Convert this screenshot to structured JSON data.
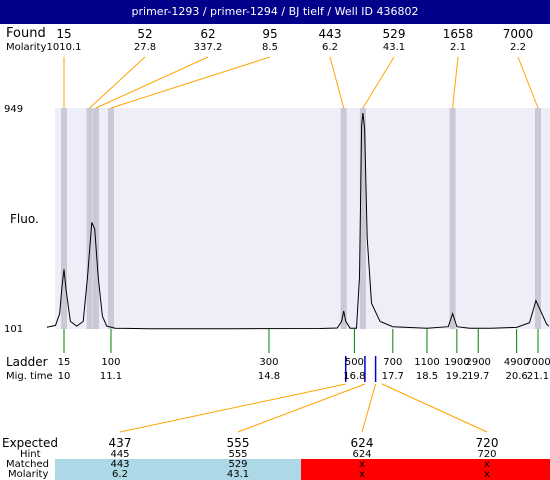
{
  "title": "primer-1293 / primer-1294 / BJ tielf / Well ID 436802",
  "labels": {
    "found": "Found",
    "molarity": "Molarity",
    "fluo": "Fluo.",
    "ladder": "Ladder",
    "mig_time": "Mig. time",
    "expected": "Expected",
    "hint": "Hint",
    "matched": "Matched",
    "molarity_bottom": "Molarity"
  },
  "colors": {
    "title_bg": "#00008b",
    "plot_bg": "#eeeef8",
    "peak_band": "#c9c9d8",
    "connector": "#ffa500",
    "ladder_tick": "#008000",
    "marker_tick": "#0000cd",
    "matched": "#add8e6",
    "unmatched": "#ff0000"
  },
  "chart_data": {
    "type": "line",
    "ylabel": "Fluo.",
    "ylim": [
      101,
      949
    ],
    "y_ticks": [
      "949",
      "101"
    ],
    "found_peaks": [
      {
        "size": "15",
        "molarity": "1010.1",
        "time": 10.0
      },
      {
        "size": "52",
        "molarity": "27.8",
        "time": 10.6
      },
      {
        "size": "62",
        "molarity": "337.2",
        "time": 10.75
      },
      {
        "size": "95",
        "molarity": "8.5",
        "time": 11.1
      },
      {
        "size": "443",
        "molarity": "6.2",
        "time": 16.55
      },
      {
        "size": "529",
        "molarity": "43.1",
        "time": 17.0
      },
      {
        "size": "1658",
        "molarity": "2.1",
        "time": 19.1
      },
      {
        "size": "7000",
        "molarity": "2.2",
        "time": 21.1
      }
    ],
    "ladder": [
      {
        "size": "15",
        "time": "10",
        "t": 10.0
      },
      {
        "size": "100",
        "time": "11.1",
        "t": 11.1
      },
      {
        "size": "300",
        "time": "14.8",
        "t": 14.8
      },
      {
        "size": "500",
        "time": "16.8",
        "t": 16.8
      },
      {
        "size": "700",
        "time": "17.7",
        "t": 17.7
      },
      {
        "size": "1100",
        "time": "18.5",
        "t": 18.5
      },
      {
        "size": "1900",
        "time": "19.2",
        "t": 19.2
      },
      {
        "size": "2900",
        "time": "19.7",
        "t": 19.7
      },
      {
        "size": "4900",
        "time": "20.6",
        "t": 20.6
      },
      {
        "size": "7000",
        "time": "21.1",
        "t": 21.1
      }
    ],
    "marker_times": [
      16.55,
      17.0,
      17.25
    ],
    "trace": [
      [
        9.6,
        108
      ],
      [
        9.8,
        115
      ],
      [
        9.9,
        160
      ],
      [
        9.95,
        260
      ],
      [
        10.0,
        330
      ],
      [
        10.05,
        250
      ],
      [
        10.15,
        130
      ],
      [
        10.3,
        112
      ],
      [
        10.45,
        130
      ],
      [
        10.55,
        300
      ],
      [
        10.65,
        510
      ],
      [
        10.72,
        485
      ],
      [
        10.8,
        300
      ],
      [
        10.9,
        150
      ],
      [
        11.0,
        112
      ],
      [
        11.2,
        104
      ],
      [
        12.0,
        102
      ],
      [
        14.0,
        102
      ],
      [
        16.0,
        103
      ],
      [
        16.4,
        105
      ],
      [
        16.5,
        130
      ],
      [
        16.55,
        170
      ],
      [
        16.6,
        130
      ],
      [
        16.7,
        104
      ],
      [
        16.85,
        104
      ],
      [
        16.92,
        300
      ],
      [
        16.97,
        880
      ],
      [
        17.0,
        930
      ],
      [
        17.04,
        870
      ],
      [
        17.1,
        450
      ],
      [
        17.2,
        200
      ],
      [
        17.4,
        130
      ],
      [
        17.7,
        110
      ],
      [
        18.5,
        104
      ],
      [
        19.0,
        110
      ],
      [
        19.1,
        160
      ],
      [
        19.2,
        110
      ],
      [
        19.5,
        104
      ],
      [
        20.0,
        104
      ],
      [
        20.6,
        107
      ],
      [
        20.9,
        125
      ],
      [
        21.0,
        180
      ],
      [
        21.05,
        210
      ],
      [
        21.15,
        175
      ],
      [
        21.3,
        120
      ],
      [
        21.35,
        112
      ]
    ]
  },
  "expected": [
    {
      "expected": "437",
      "hint": "445",
      "matched": "443",
      "molarity": "6.2",
      "status": "matched"
    },
    {
      "expected": "555",
      "hint": "555",
      "matched": "529",
      "molarity": "43.1",
      "status": "matched"
    },
    {
      "expected": "624",
      "hint": "624",
      "matched": "x",
      "molarity": "x",
      "status": "unmatched"
    },
    {
      "expected": "720",
      "hint": "720",
      "matched": "x",
      "molarity": "x",
      "status": "unmatched"
    }
  ]
}
